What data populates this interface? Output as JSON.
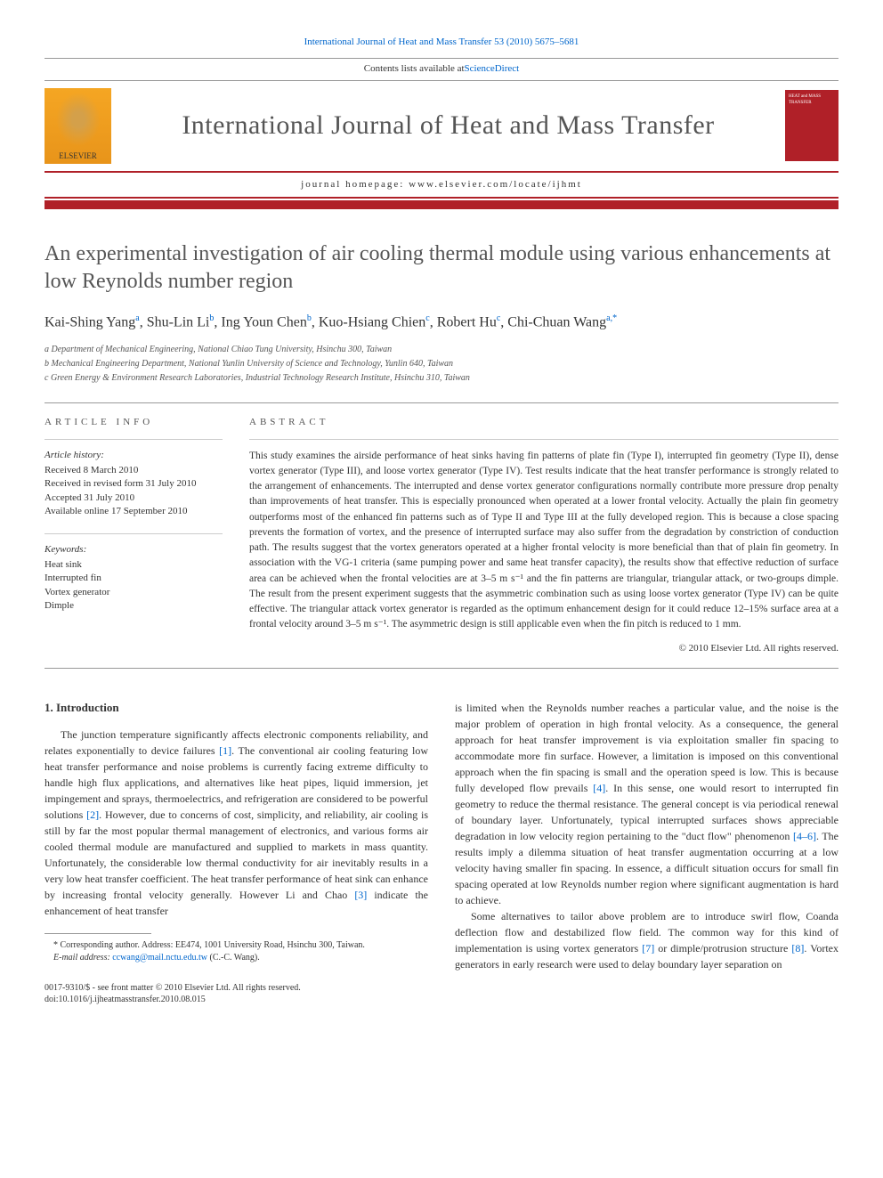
{
  "citation": {
    "prefix": "International Journal of Heat and Mass Transfer 53 (2010) 5675–5681",
    "link_text": "International Journal of Heat and Mass Transfer 53 (2010) 5675–5681"
  },
  "header": {
    "contents_text": "Contents lists available at ",
    "contents_link": "ScienceDirect",
    "journal_title": "International Journal of Heat and Mass Transfer",
    "homepage_label": "journal homepage: www.elsevier.com/locate/ijhmt",
    "elsevier_label": "ELSEVIER",
    "cover_text": "HEAT and MASS TRANSFER",
    "colors": {
      "brand_red": "#b02028",
      "link_blue": "#0066cc",
      "elsevier_orange": "#f5a623"
    }
  },
  "article": {
    "title": "An experimental investigation of air cooling thermal module using various enhancements at low Reynolds number region",
    "authors_html": "Kai-Shing Yang<sup>a</sup>, Shu-Lin Li<sup>b</sup>, Ing Youn Chen<sup>b</sup>, Kuo-Hsiang Chien<sup>c</sup>, Robert Hu<sup>c</sup>, Chi-Chuan Wang<sup>a,*</sup>",
    "affiliations": [
      "a Department of Mechanical Engineering, National Chiao Tung University, Hsinchu 300, Taiwan",
      "b Mechanical Engineering Department, National Yunlin University of Science and Technology, Yunlin 640, Taiwan",
      "c Green Energy & Environment Research Laboratories, Industrial Technology Research Institute, Hsinchu 310, Taiwan"
    ]
  },
  "info": {
    "label": "ARTICLE INFO",
    "history_label": "Article history:",
    "history": [
      "Received 8 March 2010",
      "Received in revised form 31 July 2010",
      "Accepted 31 July 2010",
      "Available online 17 September 2010"
    ],
    "keywords_label": "Keywords:",
    "keywords": [
      "Heat sink",
      "Interrupted fin",
      "Vortex generator",
      "Dimple"
    ]
  },
  "abstract": {
    "label": "ABSTRACT",
    "text": "This study examines the airside performance of heat sinks having fin patterns of plate fin (Type I), interrupted fin geometry (Type II), dense vortex generator (Type III), and loose vortex generator (Type IV). Test results indicate that the heat transfer performance is strongly related to the arrangement of enhancements. The interrupted and dense vortex generator configurations normally contribute more pressure drop penalty than improvements of heat transfer. This is especially pronounced when operated at a lower frontal velocity. Actually the plain fin geometry outperforms most of the enhanced fin patterns such as of Type II and Type III at the fully developed region. This is because a close spacing prevents the formation of vortex, and the presence of interrupted surface may also suffer from the degradation by constriction of conduction path. The results suggest that the vortex generators operated at a higher frontal velocity is more beneficial than that of plain fin geometry. In association with the VG-1 criteria (same pumping power and same heat transfer capacity), the results show that effective reduction of surface area can be achieved when the frontal velocities are at 3–5 m s⁻¹ and the fin patterns are triangular, triangular attack, or two-groups dimple. The result from the present experiment suggests that the asymmetric combination such as using loose vortex generator (Type IV) can be quite effective. The triangular attack vortex generator is regarded as the optimum enhancement design for it could reduce 12–15% surface area at a frontal velocity around 3–5 m s⁻¹. The asymmetric design is still applicable even when the fin pitch is reduced to 1 mm.",
    "copyright": "© 2010 Elsevier Ltd. All rights reserved."
  },
  "body": {
    "section1_heading": "1. Introduction",
    "col1_p1": "The junction temperature significantly affects electronic components reliability, and relates exponentially to device failures [1]. The conventional air cooling featuring low heat transfer performance and noise problems is currently facing extreme difficulty to handle high flux applications, and alternatives like heat pipes, liquid immersion, jet impingement and sprays, thermoelectrics, and refrigeration are considered to be powerful solutions [2]. However, due to concerns of cost, simplicity, and reliability, air cooling is still by far the most popular thermal management of electronics, and various forms air cooled thermal module are manufactured and supplied to markets in mass quantity. Unfortunately, the considerable low thermal conductivity for air inevitably results in a very low heat transfer coefficient. The heat transfer performance of heat sink can enhance by increasing frontal velocity generally. However Li and Chao [3] indicate the enhancement of heat transfer",
    "col2_p1": "is limited when the Reynolds number reaches a particular value, and the noise is the major problem of operation in high frontal velocity. As a consequence, the general approach for heat transfer improvement is via exploitation smaller fin spacing to accommodate more fin surface. However, a limitation is imposed on this conventional approach when the fin spacing is small and the operation speed is low. This is because fully developed flow prevails [4]. In this sense, one would resort to interrupted fin geometry to reduce the thermal resistance. The general concept is via periodical renewal of boundary layer. Unfortunately, typical interrupted surfaces shows appreciable degradation in low velocity region pertaining to the \"duct flow\" phenomenon [4–6]. The results imply a dilemma situation of heat transfer augmentation occurring at a low velocity having smaller fin spacing. In essence, a difficult situation occurs for small fin spacing operated at low Reynolds number region where significant augmentation is hard to achieve.",
    "col2_p2": "Some alternatives to tailor above problem are to introduce swirl flow, Coanda deflection flow and destabilized flow field. The common way for this kind of implementation is using vortex generators [7] or dimple/protrusion structure [8]. Vortex generators in early research were used to delay boundary layer separation on",
    "refs": {
      "r1": "[1]",
      "r2": "[2]",
      "r3": "[3]",
      "r4a": "[4]",
      "r4b": "[4–6]",
      "r7": "[7]",
      "r8": "[8]"
    }
  },
  "footnotes": {
    "corr": "* Corresponding author. Address: EE474, 1001 University Road, Hsinchu 300, Taiwan.",
    "email_label": "E-mail address: ",
    "email": "ccwang@mail.nctu.edu.tw",
    "email_attribution": " (C.-C. Wang)."
  },
  "footer": {
    "issn_line": "0017-9310/$ - see front matter © 2010 Elsevier Ltd. All rights reserved.",
    "doi_line": "doi:10.1016/j.ijheatmasstransfer.2010.08.015"
  },
  "typography": {
    "title_fontsize_pt": 24,
    "journal_title_fontsize_pt": 30,
    "body_fontsize_pt": 12,
    "abstract_fontsize_pt": 11.5,
    "footnote_fontsize_pt": 10,
    "font_family": "Georgia, Times New Roman, serif"
  }
}
